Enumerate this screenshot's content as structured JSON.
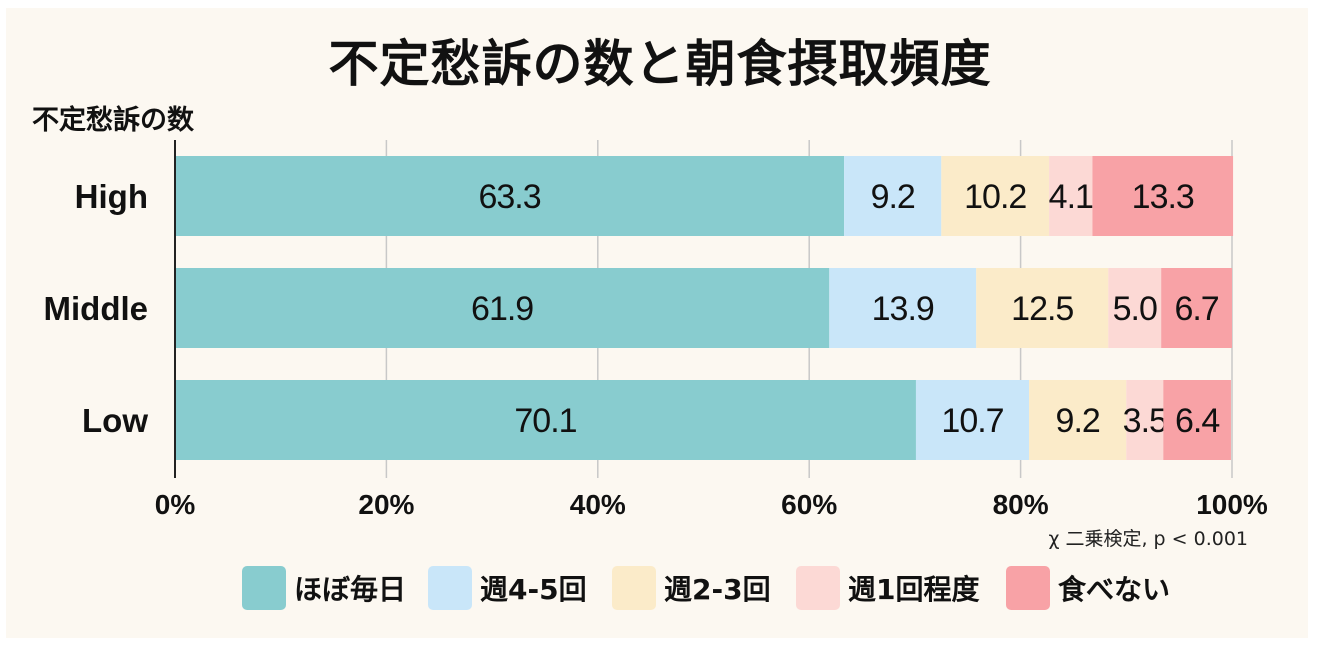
{
  "chart_data": {
    "type": "bar",
    "orientation": "horizontal",
    "stacked": true,
    "title": "不定愁訴の数と朝食摂取頻度",
    "ylabel": "不定愁訴の数",
    "categories": [
      "High",
      "Middle",
      "Low"
    ],
    "series": [
      {
        "name": "ほぼ毎日",
        "color": "#88cccf",
        "values": [
          63.3,
          61.9,
          70.1
        ]
      },
      {
        "name": "週4-5回",
        "color": "#c9e6f9",
        "values": [
          9.2,
          13.9,
          10.7
        ]
      },
      {
        "name": "週2-3回",
        "color": "#fbebc9",
        "values": [
          10.2,
          12.5,
          9.2
        ]
      },
      {
        "name": "週1回程度",
        "color": "#fcd9d5",
        "values": [
          4.1,
          5.0,
          3.5
        ]
      },
      {
        "name": "食べない",
        "color": "#f8a2a6",
        "values": [
          13.3,
          6.7,
          6.4
        ]
      }
    ],
    "data_labels": [
      [
        "63.3",
        "9.2",
        "10.2",
        "4.1",
        "13.3"
      ],
      [
        "61.9",
        "13.9",
        "12.5",
        "5.0",
        "6.7"
      ],
      [
        "70.1",
        "10.7",
        "9.2",
        "3.5",
        "6.4"
      ]
    ],
    "xlim": [
      0,
      100
    ],
    "xticks": [
      0,
      20,
      40,
      60,
      80,
      100
    ],
    "xtick_labels": [
      "0%",
      "20%",
      "40%",
      "60%",
      "80%",
      "100%"
    ],
    "grid": true,
    "legend_position": "bottom",
    "annotation": "χ 二乗検定, p < 0.001"
  }
}
